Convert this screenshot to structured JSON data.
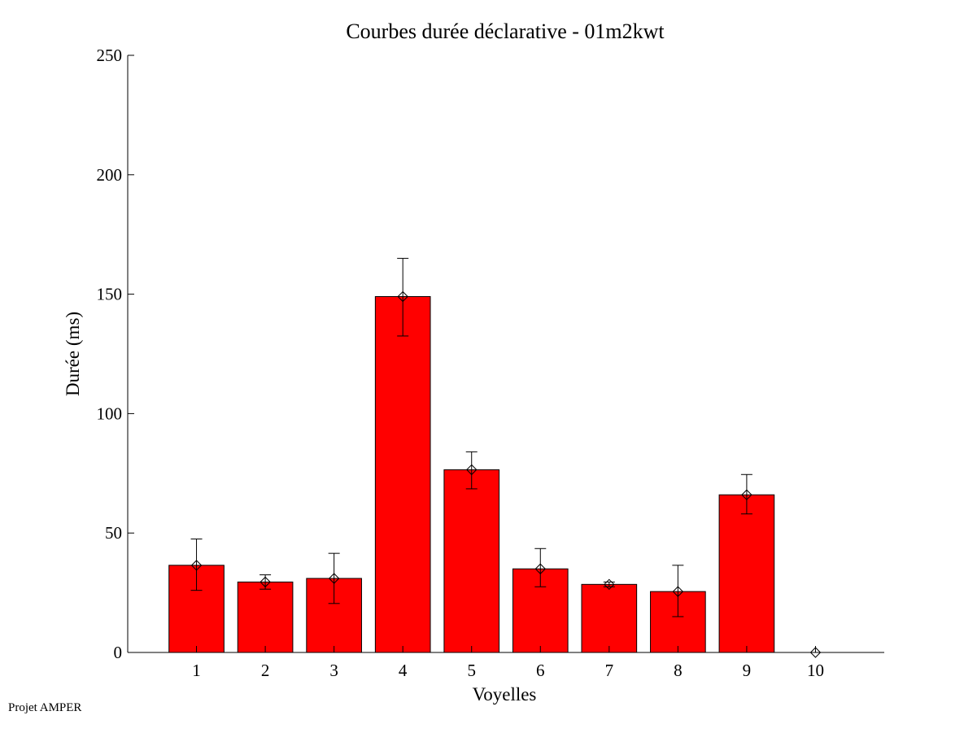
{
  "footer": "Projet AMPER",
  "chart_data": {
    "type": "bar",
    "title": "Courbes durée déclarative - 01m2kwt",
    "xlabel": "Voyelles",
    "ylabel": "Durée (ms)",
    "categories": [
      "1",
      "2",
      "3",
      "4",
      "5",
      "6",
      "7",
      "8",
      "9",
      "10"
    ],
    "values": [
      36.5,
      29.5,
      31,
      149,
      76.5,
      35,
      28.5,
      25.5,
      66,
      0
    ],
    "error_low": [
      26,
      26.5,
      20.5,
      132.5,
      68.5,
      27.5,
      27.5,
      15,
      58,
      0
    ],
    "error_high": [
      47.5,
      32.5,
      41.5,
      165,
      84,
      43.5,
      29.5,
      36.5,
      74.5,
      0
    ],
    "ylim": [
      0,
      250
    ],
    "yticks": [
      0,
      50,
      100,
      150,
      200,
      250
    ],
    "xlim": [
      0,
      11
    ],
    "bar_color": "#ff0000",
    "marker": "diamond",
    "grid": false
  }
}
